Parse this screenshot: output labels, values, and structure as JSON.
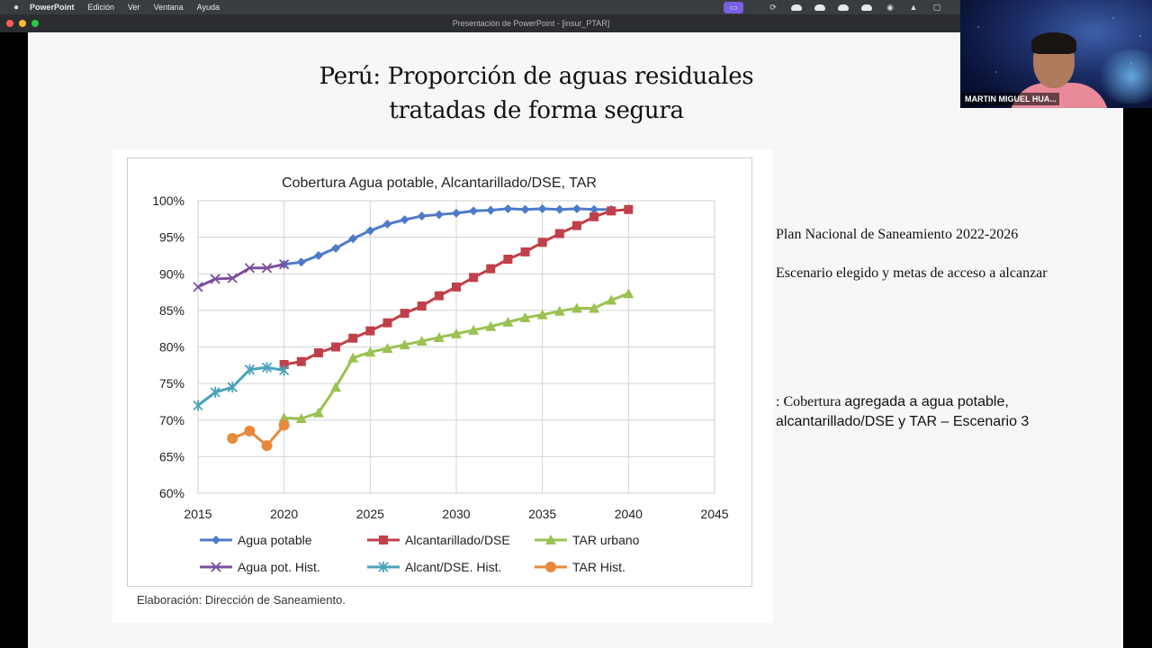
{
  "menubar": {
    "app": "PowerPoint",
    "items": [
      "Edición",
      "Ver",
      "Ventana",
      "Ayuda"
    ]
  },
  "window": {
    "title": "Presentación de PowerPoint - [insur_PTAR]"
  },
  "slide": {
    "title_line1": "Perú: Proporción de aguas residuales",
    "title_line2": "tratadas de forma segura",
    "side_text_1": "Plan Nacional de Saneamiento 2022-2026",
    "side_text_2": "Escenario elegido y metas de acceso a alcanzar",
    "caption_serif": ": Cobertura ",
    "caption_sans_1": "agregada a agua potable,",
    "caption_sans_2": "alcantarillado/DSE y TAR – Escenario 3",
    "credit": "Elaboración: Dirección de Saneamiento."
  },
  "video": {
    "participant_name": "MARTIN MIGUEL HUA..."
  },
  "chart_data": {
    "type": "line",
    "title": "Cobertura Agua potable, Alcantarillado/DSE, TAR",
    "xlim": [
      2015,
      2045
    ],
    "xticks": [
      2015,
      2020,
      2025,
      2030,
      2035,
      2040,
      2045
    ],
    "ylim": [
      60,
      100
    ],
    "yticks": [
      60,
      65,
      70,
      75,
      80,
      85,
      90,
      95,
      100
    ],
    "ytick_labels": [
      "60%",
      "65%",
      "70%",
      "75%",
      "80%",
      "85%",
      "90%",
      "95%",
      "100%"
    ],
    "grid": true,
    "legend_position": "bottom",
    "series": [
      {
        "name": "Agua potable",
        "color": "#4f7ac9",
        "marker": "diamond",
        "x": [
          2020,
          2021,
          2022,
          2023,
          2024,
          2025,
          2026,
          2027,
          2028,
          2029,
          2030,
          2031,
          2032,
          2033,
          2034,
          2035,
          2036,
          2037,
          2038,
          2039
        ],
        "y": [
          91.3,
          91.6,
          92.5,
          93.5,
          94.8,
          95.9,
          96.8,
          97.4,
          97.9,
          98.1,
          98.3,
          98.6,
          98.7,
          98.9,
          98.8,
          98.9,
          98.8,
          98.9,
          98.8,
          98.8
        ]
      },
      {
        "name": "Alcantarillado/DSE",
        "color": "#c0404a",
        "marker": "square",
        "x": [
          2020,
          2021,
          2022,
          2023,
          2024,
          2025,
          2026,
          2027,
          2028,
          2029,
          2030,
          2031,
          2032,
          2033,
          2034,
          2035,
          2036,
          2037,
          2038,
          2039,
          2040
        ],
        "y": [
          77.6,
          78.0,
          79.2,
          80.0,
          81.2,
          82.2,
          83.3,
          84.6,
          85.6,
          87.0,
          88.2,
          89.5,
          90.7,
          92.0,
          93.0,
          94.3,
          95.5,
          96.6,
          97.8,
          98.6,
          98.8
        ]
      },
      {
        "name": "TAR urbano",
        "color": "#9bc152",
        "marker": "triangle",
        "x": [
          2020,
          2021,
          2022,
          2023,
          2024,
          2025,
          2026,
          2027,
          2028,
          2029,
          2030,
          2031,
          2032,
          2033,
          2034,
          2035,
          2036,
          2037,
          2038,
          2039,
          2040
        ],
        "y": [
          70.3,
          70.2,
          71.0,
          74.5,
          78.5,
          79.3,
          79.8,
          80.3,
          80.8,
          81.3,
          81.8,
          82.3,
          82.8,
          83.4,
          84.0,
          84.4,
          84.9,
          85.3,
          85.3,
          86.4,
          87.3
        ]
      },
      {
        "name": "Agua pot. Hist.",
        "color": "#7b4f9d",
        "marker": "x",
        "x": [
          2015,
          2016,
          2017,
          2018,
          2019,
          2020
        ],
        "y": [
          88.2,
          89.3,
          89.4,
          90.8,
          90.8,
          91.3
        ]
      },
      {
        "name": "Alcant/DSE. Hist.",
        "color": "#4aa3b8",
        "marker": "star",
        "x": [
          2015,
          2016,
          2017,
          2018,
          2019,
          2020
        ],
        "y": [
          72.0,
          73.8,
          74.5,
          76.9,
          77.2,
          76.8
        ]
      },
      {
        "name": "TAR Hist.",
        "color": "#e8883a",
        "marker": "circle",
        "x": [
          2017,
          2018,
          2019,
          2020
        ],
        "y": [
          67.5,
          68.5,
          66.5,
          69.3
        ]
      }
    ]
  }
}
